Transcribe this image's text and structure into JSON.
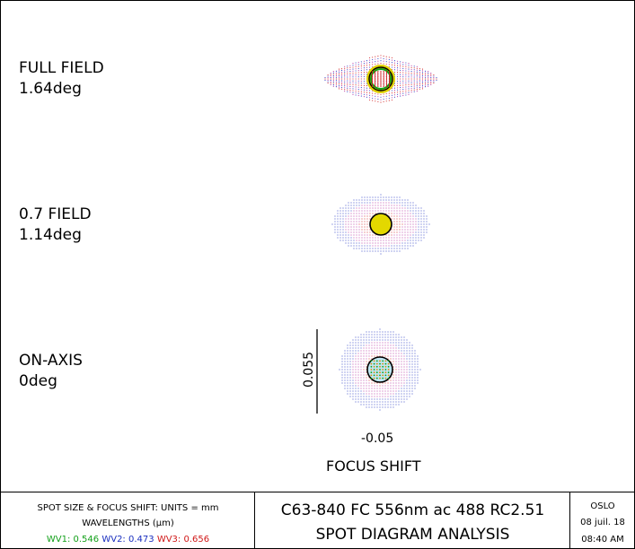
{
  "fields": [
    {
      "name": "FULL FIELD",
      "angle": "1.64deg"
    },
    {
      "name": "0.7 FIELD",
      "angle": "1.14deg"
    },
    {
      "name": "ON-AXIS",
      "angle": "0deg"
    }
  ],
  "scale": {
    "vertical_label": "0.055",
    "focus_shift_value": "-0.05",
    "focus_shift_title": "FOCUS SHIFT"
  },
  "info": {
    "units_line": "SPOT SIZE & FOCUS SHIFT: UNITS = mm",
    "wavelengths_line": "WAVELENGTHS (µm)",
    "wavelengths": [
      {
        "label": "WV1:",
        "value": "0.546",
        "color": "#13a01a"
      },
      {
        "label": "WV2:",
        "value": "0.473",
        "color": "#1a2fbf"
      },
      {
        "label": "WV3:",
        "value": "0.656",
        "color": "#d01818"
      }
    ],
    "lens_title": "C63-840 FC 556nm ac 488 RC2.51",
    "analysis_title": "SPOT DIAGRAM ANALYSIS",
    "program": "OSLO",
    "date": "08 juil. 18",
    "time": "08:40 AM"
  }
}
